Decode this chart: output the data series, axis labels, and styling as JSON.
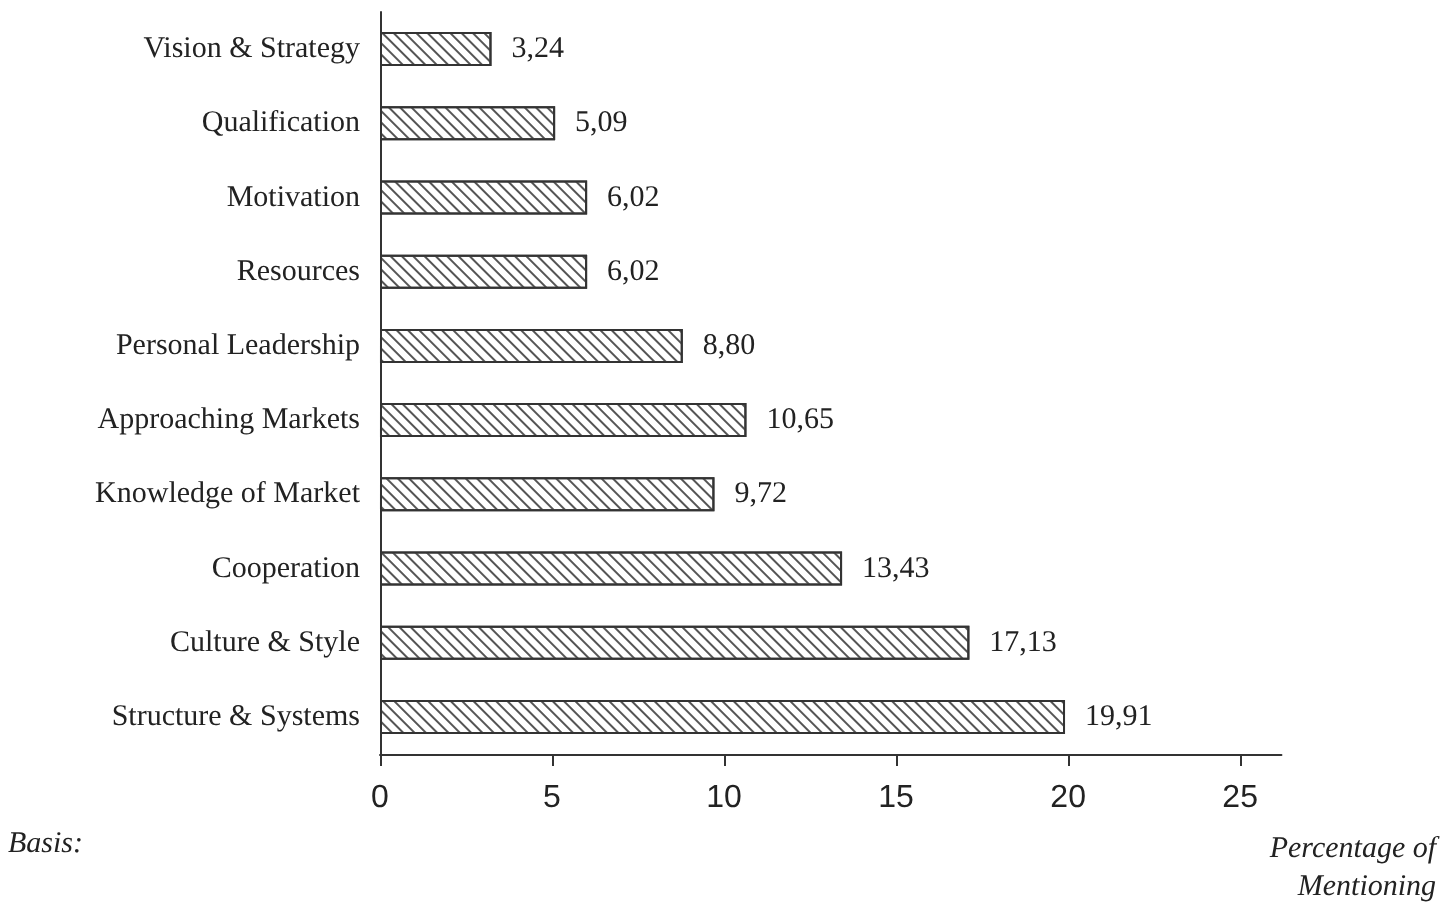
{
  "chart_data": {
    "type": "bar",
    "orientation": "horizontal",
    "categories": [
      "Vision & Strategy",
      "Qualification",
      "Motivation",
      "Resources",
      "Personal Leadership",
      "Approaching Markets",
      "Knowledge of Market",
      "Cooperation",
      "Culture & Style",
      "Structure & Systems"
    ],
    "values": [
      3.24,
      5.09,
      6.02,
      6.02,
      8.8,
      10.65,
      9.72,
      13.43,
      17.13,
      19.91
    ],
    "value_labels": [
      "3,24",
      "5,09",
      "6,02",
      "6,02",
      "8,80",
      "10,65",
      "9,72",
      "13,43",
      "17,13",
      "19,91"
    ],
    "color": "#ffffff",
    "xlabel": "Percentage of\nMentioning",
    "xlim": [
      0,
      26.2
    ],
    "xticks": [
      0,
      5,
      10,
      15,
      20,
      25
    ],
    "annotations": [
      "Basis:"
    ],
    "grid": false
  }
}
